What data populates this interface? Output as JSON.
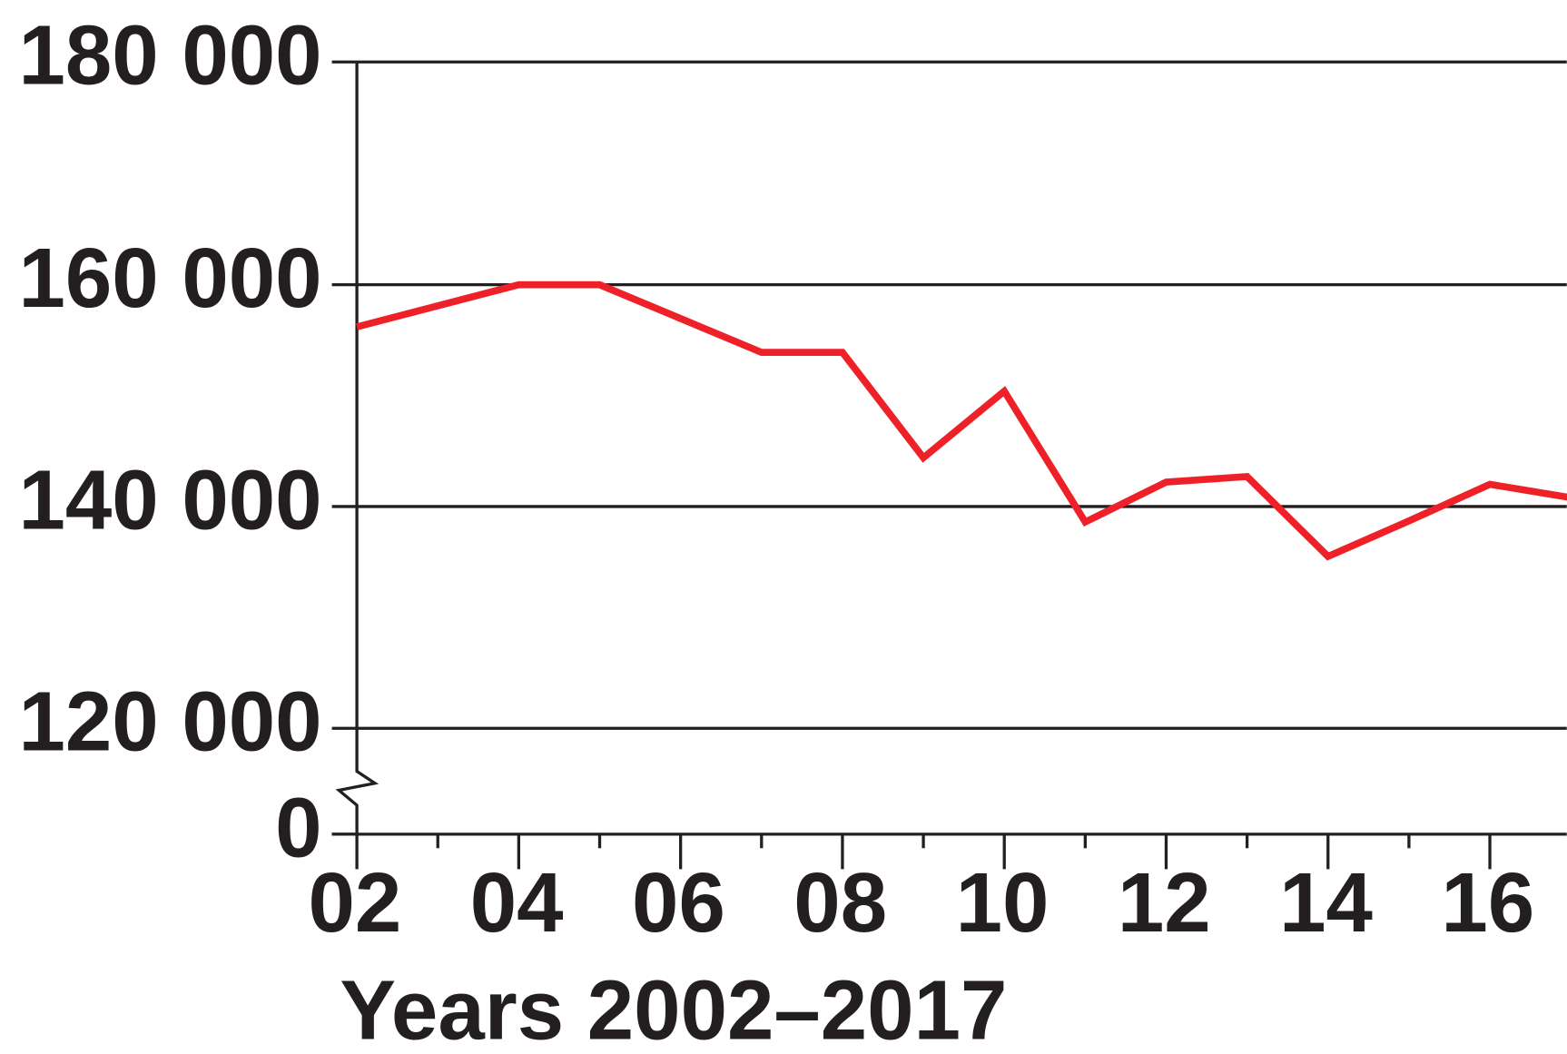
{
  "chart_data": {
    "type": "line",
    "xlabel": "Years 2002–2017",
    "x": [
      2002,
      2004,
      2005,
      2007,
      2008,
      2009,
      2010,
      2011,
      2012,
      2013,
      2014,
      2015,
      2016,
      2017
    ],
    "series": [
      {
        "color": "#ee2128",
        "values": [
          156200,
          160000,
          160000,
          153900,
          153900,
          144400,
          150400,
          138600,
          142200,
          142700,
          135500,
          138700,
          142000,
          140800
        ]
      }
    ],
    "xlim": [
      2002,
      2017
    ],
    "xticks": [
      {
        "value": 2002,
        "label": "02"
      },
      {
        "value": 2004,
        "label": "04"
      },
      {
        "value": 2006,
        "label": "06"
      },
      {
        "value": 2008,
        "label": "08"
      },
      {
        "value": 2010,
        "label": "10"
      },
      {
        "value": 2012,
        "label": "12"
      },
      {
        "value": 2014,
        "label": "14"
      },
      {
        "value": 2016,
        "label": "16"
      }
    ],
    "xminorticks": [
      2003,
      2005,
      2007,
      2009,
      2011,
      2013,
      2015,
      2017
    ],
    "ylim": [
      0,
      180000
    ],
    "yticks": [
      0,
      {
        "value": 120000,
        "label": "120 000"
      },
      {
        "value": 140000,
        "label": "140 000"
      },
      {
        "value": 160000,
        "label": "160 000"
      },
      {
        "value": 180000,
        "label": "180 000"
      }
    ],
    "grid": true
  }
}
